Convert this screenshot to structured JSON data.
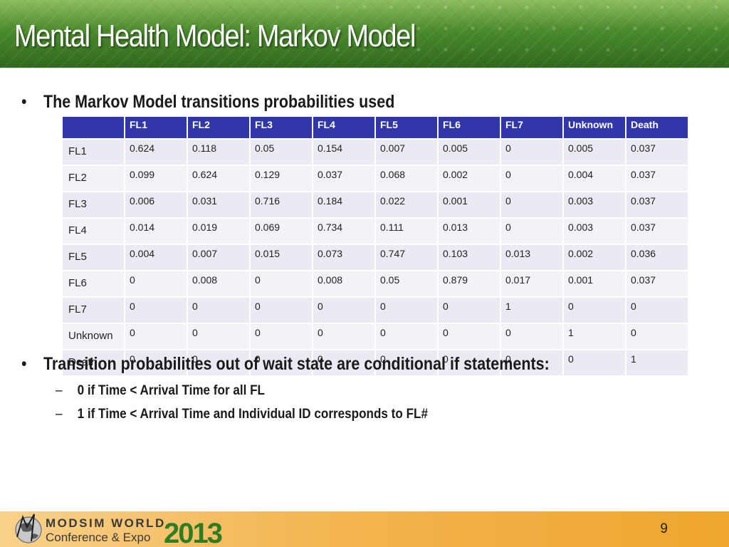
{
  "slide": {
    "title": "Mental Health Model: Markov Model",
    "bullet1": "The Markov Model transitions probabilities used",
    "bullet2": "Transition probabilities out of wait state are conditional if statements:",
    "subbullets": [
      "0 if Time < Arrival Time for all FL",
      "1 if Time < Arrival Time and Individual  ID corresponds to FL#"
    ],
    "bullet_glyph": "•",
    "dash_glyph": "–",
    "page_number": "9"
  },
  "table": {
    "header": [
      "",
      "FL1",
      "FL2",
      "FL3",
      "FL4",
      "FL5",
      "FL6",
      "FL7",
      "Unknown",
      "Death"
    ],
    "rows": [
      [
        "FL1",
        "0.624",
        "0.118",
        "0.05",
        "0.154",
        "0.007",
        "0.005",
        "0",
        "0.005",
        "0.037"
      ],
      [
        "FL2",
        "0.099",
        "0.624",
        "0.129",
        "0.037",
        "0.068",
        "0.002",
        "0",
        "0.004",
        "0.037"
      ],
      [
        "FL3",
        "0.006",
        "0.031",
        "0.716",
        "0.184",
        "0.022",
        "0.001",
        "0",
        "0.003",
        "0.037"
      ],
      [
        "FL4",
        "0.014",
        "0.019",
        "0.069",
        "0.734",
        "0.111",
        "0.013",
        "0",
        "0.003",
        "0.037"
      ],
      [
        "FL5",
        "0.004",
        "0.007",
        "0.015",
        "0.073",
        "0.747",
        "0.103",
        "0.013",
        "0.002",
        "0.036"
      ],
      [
        "FL6",
        "0",
        "0.008",
        "0",
        "0.008",
        "0.05",
        "0.879",
        "0.017",
        "0.001",
        "0.037"
      ],
      [
        "FL7",
        "0",
        "0",
        "0",
        "0",
        "0",
        "0",
        "1",
        "0",
        "0"
      ],
      [
        "Unknown",
        "0",
        "0",
        "0",
        "0",
        "0",
        "0",
        "0",
        "1",
        "0"
      ],
      [
        "Death",
        "0",
        "0",
        "0",
        "0",
        "0",
        "0",
        "0",
        "0",
        "1"
      ]
    ]
  },
  "footer": {
    "logo_line1": "MODSIM WORLD",
    "logo_line2": "Conference & Expo",
    "logo_year": "2013",
    "logo_icon": "globe-icon",
    "colors": {
      "header_green": "#4b8a2e",
      "table_header_blue": "#3137a8",
      "footer_orange": "#f4b755",
      "logo_year_green": "#2f7d22"
    }
  }
}
